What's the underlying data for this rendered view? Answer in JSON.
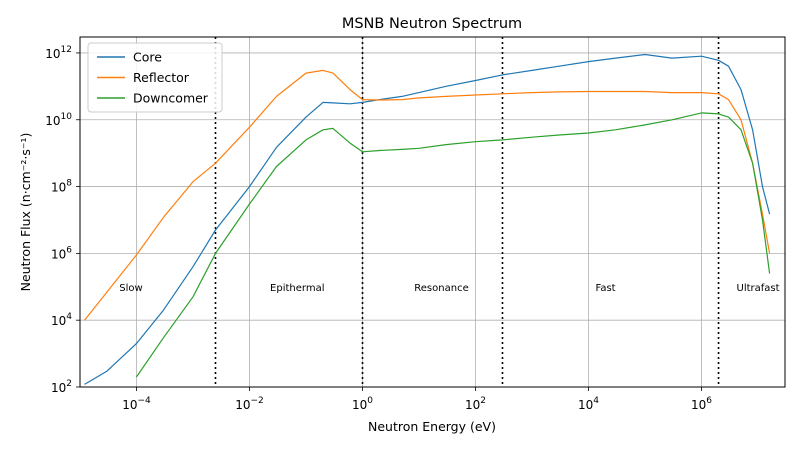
{
  "chart_data": {
    "type": "line",
    "title": "MSNB Neutron Spectrum",
    "xlabel": "Neutron Energy (eV)",
    "ylabel": "Neutron Flux (n·cm⁻²·s⁻¹)",
    "x_scale": "log",
    "y_scale": "log",
    "xlim": [
      1e-05,
      30000000.0
    ],
    "ylim": [
      100,
      3000000000000.0
    ],
    "x_ticks": [
      {
        "value": 0.0001,
        "base": "10",
        "exp": "−4"
      },
      {
        "value": 0.01,
        "base": "10",
        "exp": "−2"
      },
      {
        "value": 1,
        "base": "10",
        "exp": "0"
      },
      {
        "value": 100,
        "base": "10",
        "exp": "2"
      },
      {
        "value": 10000.0,
        "base": "10",
        "exp": "4"
      },
      {
        "value": 1000000.0,
        "base": "10",
        "exp": "6"
      }
    ],
    "y_ticks": [
      {
        "value": 100,
        "base": "10",
        "exp": "2"
      },
      {
        "value": 10000.0,
        "base": "10",
        "exp": "4"
      },
      {
        "value": 1000000.0,
        "base": "10",
        "exp": "6"
      },
      {
        "value": 100000000.0,
        "base": "10",
        "exp": "8"
      },
      {
        "value": 10000000000.0,
        "base": "10",
        "exp": "10"
      },
      {
        "value": 1000000000000.0,
        "base": "10",
        "exp": "12"
      }
    ],
    "grid": true,
    "legend_position": "top-left",
    "boundaries": [
      0.0025,
      1.0,
      300,
      2000000.0
    ],
    "regions": [
      {
        "label": "Slow",
        "x": 8e-05
      },
      {
        "label": "Epithermal",
        "x": 0.07
      },
      {
        "label": "Resonance",
        "x": 25
      },
      {
        "label": "Fast",
        "x": 20000.0
      },
      {
        "label": "Ultrafast",
        "x": 10000000.0
      }
    ],
    "region_label_y": 100000.0,
    "series": [
      {
        "name": "Core",
        "color": "#1f77b4",
        "x": [
          1.2e-05,
          3e-05,
          0.0001,
          0.0003,
          0.001,
          0.0025,
          0.01,
          0.03,
          0.1,
          0.2,
          0.3,
          0.6,
          1.0,
          2,
          5,
          10,
          30,
          100,
          300,
          1000.0,
          3000.0,
          10000.0,
          30000.0,
          100000.0,
          300000.0,
          1000000.0,
          2000000.0,
          3000000.0,
          5000000.0,
          8000000.0,
          12000000.0,
          16000000.0
        ],
        "y": [
          120,
          300.0,
          2000.0,
          20000.0,
          400000.0,
          5000000.0,
          100000000.0,
          1500000000.0,
          12000000000.0,
          33000000000.0,
          32000000000.0,
          30000000000.0,
          33000000000.0,
          40000000000.0,
          50000000000.0,
          65000000000.0,
          100000000000.0,
          150000000000.0,
          220000000000.0,
          300000000000.0,
          400000000000.0,
          550000000000.0,
          700000000000.0,
          900000000000.0,
          700000000000.0,
          800000000000.0,
          600000000000.0,
          400000000000.0,
          80000000000.0,
          5000000000.0,
          100000000.0,
          15000000.0
        ]
      },
      {
        "name": "Reflector",
        "color": "#ff7f0e",
        "x": [
          1.2e-05,
          3e-05,
          0.0001,
          0.0003,
          0.001,
          0.0025,
          0.01,
          0.03,
          0.1,
          0.2,
          0.3,
          0.6,
          1.0,
          2,
          5,
          10,
          30,
          100,
          300,
          1000.0,
          3000.0,
          10000.0,
          30000.0,
          100000.0,
          300000.0,
          1000000.0,
          2000000.0,
          3000000.0,
          5000000.0,
          8000000.0,
          12000000.0,
          16000000.0
        ],
        "y": [
          10000.0,
          70000.0,
          900000.0,
          12000000.0,
          140000000.0,
          500000000.0,
          6000000000.0,
          50000000000.0,
          250000000000.0,
          300000000000.0,
          250000000000.0,
          80000000000.0,
          40000000000.0,
          39000000000.0,
          40000000000.0,
          45000000000.0,
          50000000000.0,
          55000000000.0,
          60000000000.0,
          65000000000.0,
          68000000000.0,
          70000000000.0,
          70000000000.0,
          70000000000.0,
          65000000000.0,
          65000000000.0,
          60000000000.0,
          40000000000.0,
          10000000000.0,
          500000000.0,
          15000000.0,
          1000000.0
        ]
      },
      {
        "name": "Downcomer",
        "color": "#2ca02c",
        "x": [
          0.0001,
          0.0003,
          0.001,
          0.0025,
          0.01,
          0.03,
          0.1,
          0.2,
          0.3,
          0.6,
          1.0,
          2,
          5,
          10,
          30,
          100,
          300,
          1000.0,
          3000.0,
          10000.0,
          30000.0,
          100000.0,
          300000.0,
          1000000.0,
          2000000.0,
          3000000.0,
          5000000.0,
          8000000.0,
          12000000.0,
          16000000.0
        ],
        "y": [
          200,
          3000.0,
          50000.0,
          1000000.0,
          30000000.0,
          400000000.0,
          2500000000.0,
          5000000000.0,
          5500000000.0,
          2000000000.0,
          1100000000.0,
          1200000000.0,
          1300000000.0,
          1400000000.0,
          1800000000.0,
          2200000000.0,
          2500000000.0,
          3000000000.0,
          3500000000.0,
          4000000000.0,
          5000000000.0,
          7000000000.0,
          10000000000.0,
          16000000000.0,
          15000000000.0,
          12000000000.0,
          5000000000.0,
          500000000.0,
          10000000.0,
          250000.0
        ]
      }
    ]
  }
}
